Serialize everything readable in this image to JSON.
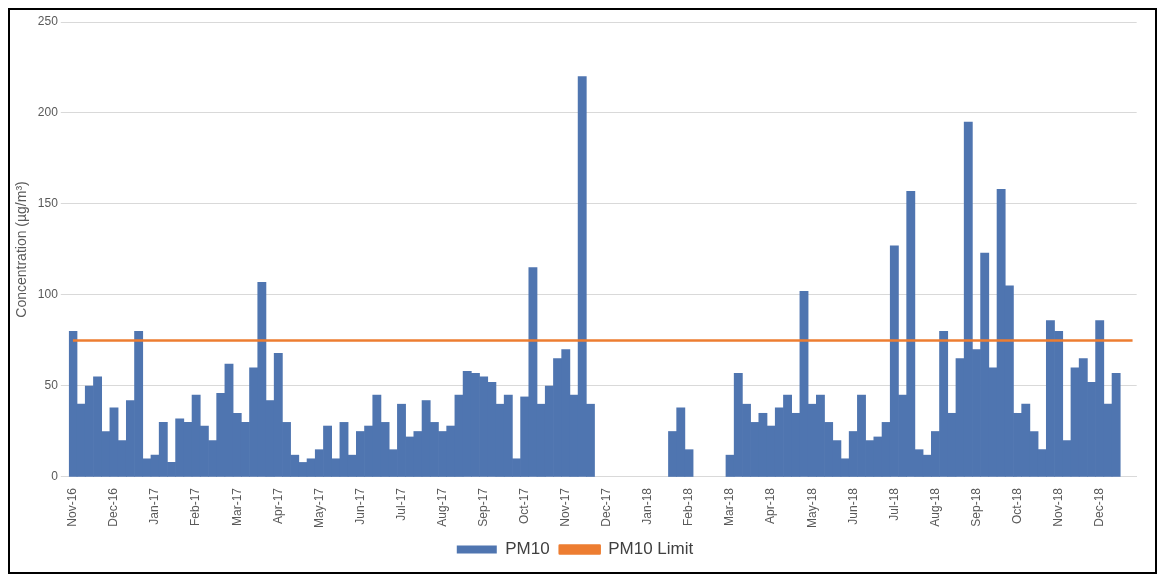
{
  "chart_data": {
    "type": "bar",
    "ylabel": "Concentration (µg/m³)",
    "categories": [
      "Nov-16",
      null,
      null,
      null,
      null,
      "Dec-16",
      null,
      null,
      null,
      null,
      "Jan-17",
      null,
      null,
      null,
      null,
      "Feb-17",
      null,
      null,
      null,
      null,
      "Mar-17",
      null,
      null,
      null,
      null,
      "Apr-17",
      null,
      null,
      null,
      null,
      "May-17",
      null,
      null,
      null,
      null,
      "Jun-17",
      null,
      null,
      null,
      null,
      "Jul-17",
      null,
      null,
      null,
      null,
      "Aug-17",
      null,
      null,
      null,
      null,
      "Sep-17",
      null,
      null,
      null,
      null,
      "Oct-17",
      null,
      null,
      null,
      null,
      "Nov-17",
      null,
      null,
      null,
      null,
      "Dec-17",
      null,
      null,
      null,
      null,
      "Jan-18",
      null,
      null,
      null,
      null,
      "Feb-18",
      null,
      null,
      null,
      null,
      "Mar-18",
      null,
      null,
      null,
      null,
      "Apr-18",
      null,
      null,
      null,
      null,
      "May-18",
      null,
      null,
      null,
      null,
      "Jun-18",
      null,
      null,
      null,
      null,
      "Jul-18",
      null,
      null,
      null,
      null,
      "Aug-18",
      null,
      null,
      null,
      null,
      "Sep-18",
      null,
      null,
      null,
      null,
      "Oct-18",
      null,
      null,
      null,
      null,
      "Nov-18",
      null,
      null,
      null,
      null,
      "Dec-18",
      null,
      null,
      null,
      null
    ],
    "series": [
      {
        "name": "PM10",
        "color": "#4f75b0",
        "values": [
          80,
          40,
          50,
          55,
          25,
          38,
          20,
          42,
          80,
          10,
          12,
          30,
          8,
          32,
          30,
          45,
          28,
          20,
          46,
          62,
          35,
          30,
          60,
          107,
          42,
          68,
          30,
          12,
          8,
          10,
          15,
          28,
          10,
          30,
          12,
          25,
          28,
          45,
          30,
          15,
          40,
          22,
          25,
          42,
          30,
          25,
          28,
          45,
          58,
          57,
          55,
          52,
          40,
          45,
          10,
          44,
          115,
          40,
          50,
          65,
          70,
          45,
          220,
          40,
          null,
          null,
          null,
          null,
          null,
          null,
          null,
          null,
          null,
          25,
          38,
          15,
          null,
          null,
          null,
          null,
          12,
          57,
          40,
          30,
          35,
          28,
          38,
          45,
          35,
          102,
          40,
          45,
          30,
          20,
          10,
          25,
          45,
          20,
          22,
          30,
          127,
          45,
          157,
          15,
          12,
          25,
          80,
          35,
          65,
          195,
          70,
          123,
          60,
          158,
          105,
          35,
          40,
          25,
          15,
          86,
          80,
          20,
          60,
          65,
          52,
          86,
          40,
          57,
          null,
          null
        ]
      },
      {
        "name": "PM10 Limit",
        "type": "line",
        "color": "#ed7d31",
        "values": [
          75,
          75,
          75,
          75,
          75,
          75,
          75,
          75,
          75,
          75,
          75,
          75,
          75,
          75,
          75,
          75,
          75,
          75,
          75,
          75,
          75,
          75,
          75,
          75,
          75,
          75,
          75,
          75,
          75,
          75,
          75,
          75,
          75,
          75,
          75,
          75,
          75,
          75,
          75,
          75,
          75,
          75,
          75,
          75,
          75,
          75,
          75,
          75,
          75,
          75,
          75,
          75,
          75,
          75,
          75,
          75,
          75,
          75,
          75,
          75,
          75,
          75,
          75,
          75,
          75,
          75,
          75,
          75,
          75,
          75,
          75,
          75,
          75,
          75,
          75,
          75,
          75,
          75,
          75,
          75,
          75,
          75,
          75,
          75,
          75,
          75,
          75,
          75,
          75,
          75,
          75,
          75,
          75,
          75,
          75,
          75,
          75,
          75,
          75,
          75,
          75,
          75,
          75,
          75,
          75,
          75,
          75,
          75,
          75,
          75,
          75,
          75,
          75,
          75,
          75,
          75,
          75,
          75,
          75,
          75,
          75,
          75,
          75,
          75,
          75,
          75,
          75,
          75,
          75,
          75
        ]
      }
    ],
    "ylim": [
      0,
      250
    ],
    "yticks": [
      0,
      50,
      100,
      150,
      200,
      250
    ],
    "grid": "y",
    "legend": "bottom",
    "marker": "none"
  }
}
